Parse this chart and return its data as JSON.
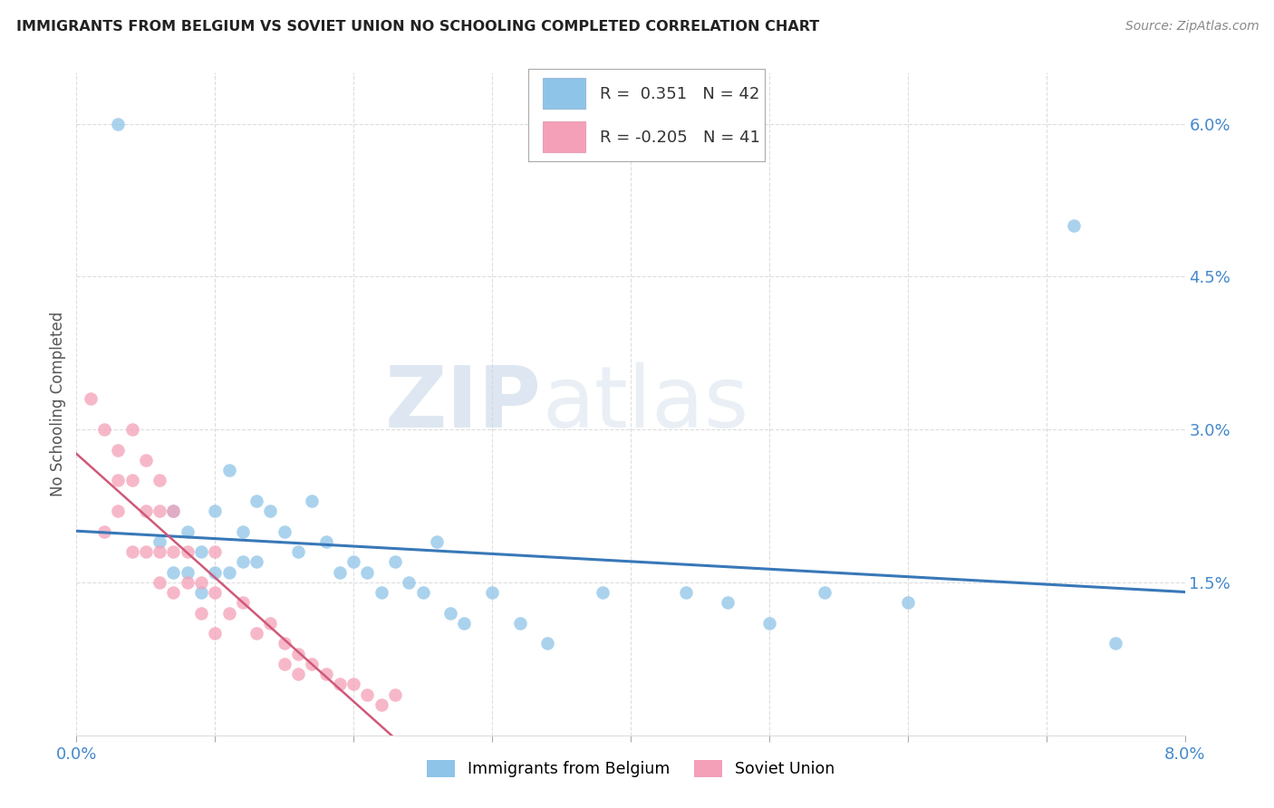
{
  "title": "IMMIGRANTS FROM BELGIUM VS SOVIET UNION NO SCHOOLING COMPLETED CORRELATION CHART",
  "source": "Source: ZipAtlas.com",
  "ylabel": "No Schooling Completed",
  "xlim": [
    0.0,
    0.08
  ],
  "ylim": [
    0.0,
    0.065
  ],
  "xticks": [
    0.0,
    0.01,
    0.02,
    0.03,
    0.04,
    0.05,
    0.06,
    0.07,
    0.08
  ],
  "xticklabels": [
    "0.0%",
    "",
    "",
    "",
    "",
    "",
    "",
    "",
    "8.0%"
  ],
  "yticks": [
    0.0,
    0.015,
    0.03,
    0.045,
    0.06
  ],
  "yticklabels": [
    "",
    "1.5%",
    "3.0%",
    "4.5%",
    "6.0%"
  ],
  "legend_r_belgium": "0.351",
  "legend_n_belgium": "42",
  "legend_r_soviet": "-0.205",
  "legend_n_soviet": "41",
  "color_belgium": "#8ec4e8",
  "color_soviet": "#f4a0b8",
  "color_belgium_line": "#3878b8",
  "color_soviet_line": "#d05878",
  "watermark_zip": "ZIP",
  "watermark_atlas": "atlas",
  "belgium_x": [
    0.003,
    0.006,
    0.007,
    0.007,
    0.008,
    0.008,
    0.009,
    0.009,
    0.01,
    0.01,
    0.011,
    0.011,
    0.012,
    0.012,
    0.013,
    0.013,
    0.014,
    0.015,
    0.016,
    0.017,
    0.018,
    0.019,
    0.02,
    0.021,
    0.022,
    0.023,
    0.024,
    0.025,
    0.026,
    0.027,
    0.028,
    0.03,
    0.032,
    0.034,
    0.038,
    0.044,
    0.047,
    0.05,
    0.054,
    0.06,
    0.072,
    0.075
  ],
  "belgium_y": [
    0.06,
    0.019,
    0.022,
    0.016,
    0.02,
    0.016,
    0.018,
    0.014,
    0.022,
    0.016,
    0.026,
    0.016,
    0.02,
    0.017,
    0.023,
    0.017,
    0.022,
    0.02,
    0.018,
    0.023,
    0.019,
    0.016,
    0.017,
    0.016,
    0.014,
    0.017,
    0.015,
    0.014,
    0.019,
    0.012,
    0.011,
    0.014,
    0.011,
    0.009,
    0.014,
    0.014,
    0.013,
    0.011,
    0.014,
    0.013,
    0.05,
    0.009
  ],
  "soviet_x": [
    0.001,
    0.002,
    0.002,
    0.003,
    0.003,
    0.003,
    0.004,
    0.004,
    0.004,
    0.005,
    0.005,
    0.005,
    0.006,
    0.006,
    0.006,
    0.006,
    0.007,
    0.007,
    0.007,
    0.008,
    0.008,
    0.009,
    0.009,
    0.01,
    0.01,
    0.01,
    0.011,
    0.012,
    0.013,
    0.014,
    0.015,
    0.015,
    0.016,
    0.016,
    0.017,
    0.018,
    0.019,
    0.02,
    0.021,
    0.022,
    0.023
  ],
  "soviet_y": [
    0.033,
    0.03,
    0.02,
    0.028,
    0.025,
    0.022,
    0.03,
    0.025,
    0.018,
    0.027,
    0.022,
    0.018,
    0.025,
    0.022,
    0.018,
    0.015,
    0.022,
    0.018,
    0.014,
    0.018,
    0.015,
    0.015,
    0.012,
    0.018,
    0.014,
    0.01,
    0.012,
    0.013,
    0.01,
    0.011,
    0.009,
    0.007,
    0.008,
    0.006,
    0.007,
    0.006,
    0.005,
    0.005,
    0.004,
    0.003,
    0.004
  ]
}
